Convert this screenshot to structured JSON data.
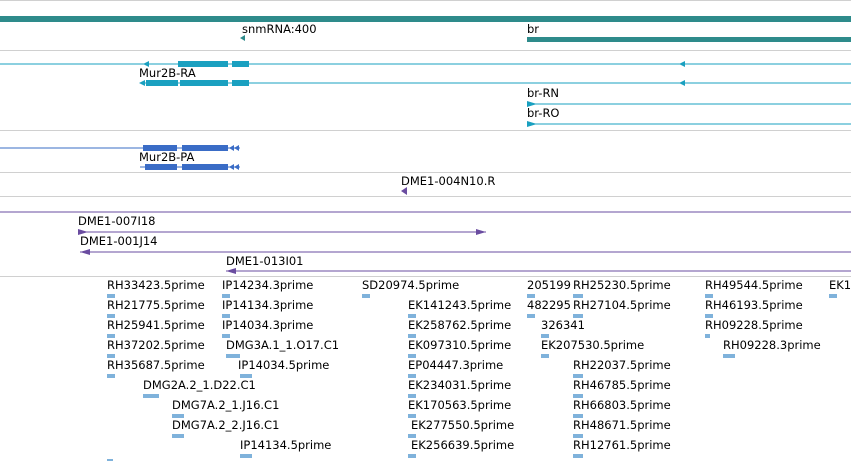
{
  "colors": {
    "gene": "#2e8b8b",
    "transcript": "#1aa0c0",
    "protein": "#3a6cc6",
    "clone": "#6a4ca0",
    "est": "#7fb2db",
    "separator": "#d0d0d0"
  },
  "tracks": {
    "genes": {
      "labels": [
        "snmRNA:400",
        "br"
      ]
    },
    "transcripts": {
      "labels": [
        "Mur2B-RA",
        "br-RN",
        "br-RO"
      ]
    },
    "proteins": {
      "labels": [
        "Mur2B-PA"
      ]
    },
    "clones_a": {
      "labels": [
        "DME1-004N10.R"
      ]
    },
    "clones_b": {
      "labels": [
        "DME1-007I18",
        "DME1-001J14",
        "DME1-013I01"
      ]
    },
    "ests": {
      "labels": [
        "RH33423.5prime",
        "RH21775.5prime",
        "RH25941.5prime",
        "RH37202.5prime",
        "RH35687.5prime",
        "IP14234.3prime",
        "IP14134.3prime",
        "IP14034.3prime",
        "DMG3A.1_1.O17.C1",
        "IP14034.5prime",
        "DMG2A.2_1.D22.C1",
        "DMG7A.2_1.J16.C1",
        "DMG7A.2_2.J16.C1",
        "IP14134.5prime",
        "SD20974.5prime",
        "EK141243.5prime",
        "EK258762.5prime",
        "EK097310.5prime",
        "EP04447.3prime",
        "EK234031.5prime",
        "EK170563.5prime",
        "EK277550.5prime",
        "EK256639.5prime",
        "205199",
        "482295",
        "326341",
        "EK207530.5prime",
        "RH25230.5prime",
        "RH27104.5prime",
        "RH22037.5prime",
        "RH46785.5prime",
        "RH66803.5prime",
        "RH48671.5prime",
        "RH12761.5prime",
        "RH49544.5prime",
        "RH46193.5prime",
        "RH09228.5prime",
        "RH09228.3prime",
        "EK1"
      ]
    }
  }
}
